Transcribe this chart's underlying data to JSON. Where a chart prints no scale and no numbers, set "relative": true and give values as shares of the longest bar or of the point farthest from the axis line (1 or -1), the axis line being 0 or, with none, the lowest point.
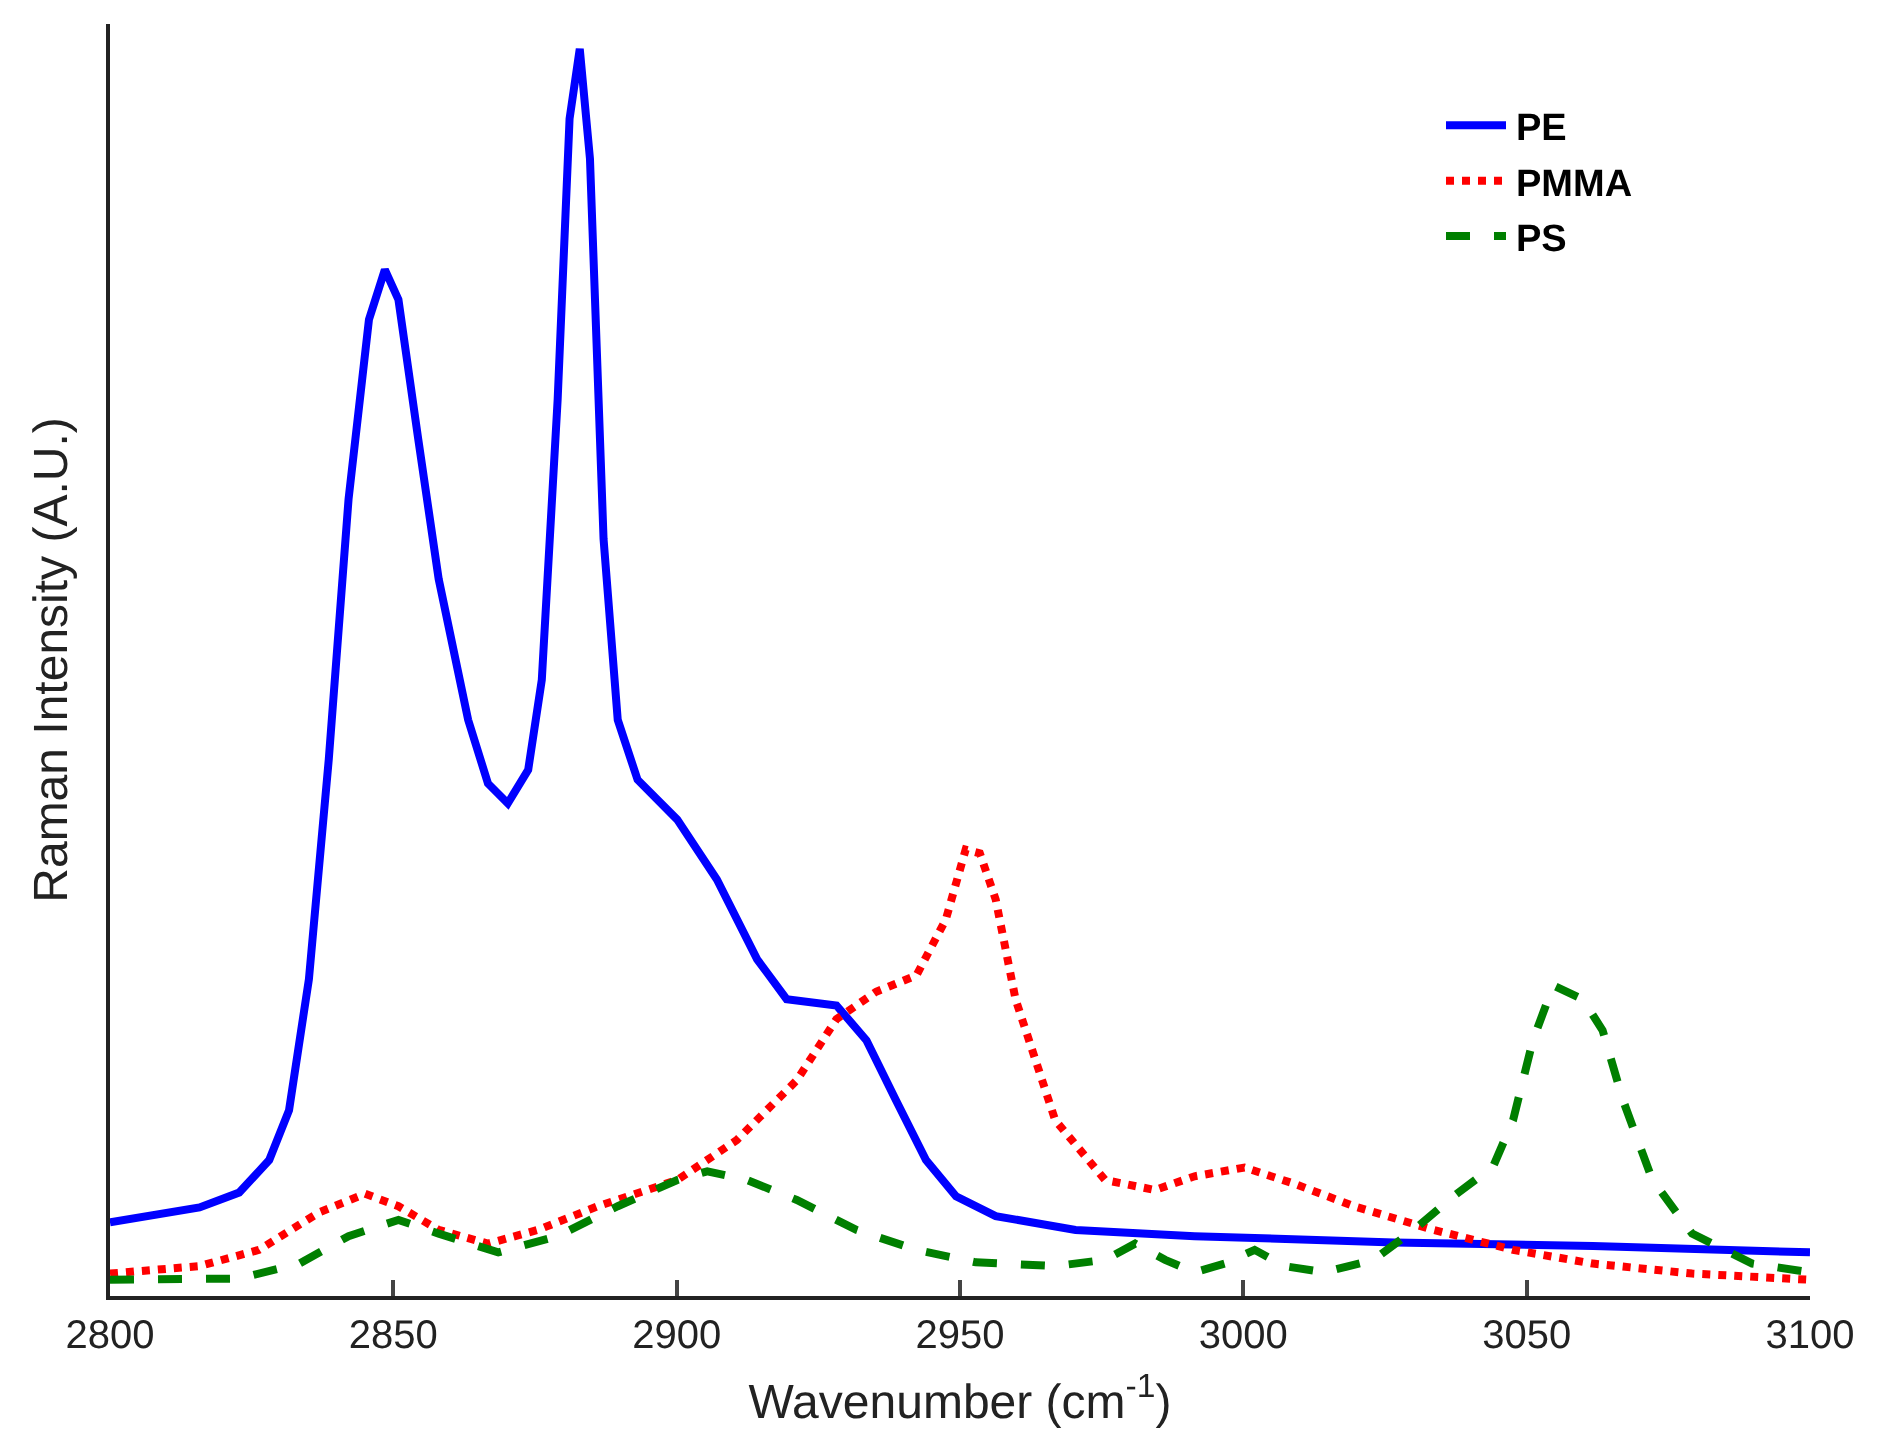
{
  "chart_data": {
    "type": "line",
    "relative": true,
    "xlabel": "Wavenumber (cm$^{-1}$)",
    "ylabel": "Raman Intensity (A.U.)",
    "xlim": [
      2800,
      3100
    ],
    "xticks": [
      2800,
      2850,
      2900,
      2950,
      3000,
      3050,
      3100
    ],
    "legend": "top right",
    "marker": "none",
    "series": [
      {
        "name": "PE",
        "color": "#0000ff",
        "line_style": "solid",
        "x": [
          2800,
          2815.8,
          2822.8,
          2828.1,
          2831.6,
          2835.1,
          2838.6,
          2842.1,
          2845.7,
          2848.5,
          2850.9,
          2854.4,
          2858.0,
          2863.2,
          2866.7,
          2870.2,
          2873.8,
          2876.2,
          2879.0,
          2881.1,
          2882.9,
          2884.7,
          2887.1,
          2889.6,
          2893.1,
          2900.1,
          2907.1,
          2914.2,
          2919.4,
          2928.2,
          2933.5,
          2938.7,
          2944.0,
          2949.3,
          2956.3,
          2970.4,
          2991.4,
          3026.6,
          3061.7,
          3100
        ],
        "values": [
          0.059,
          0.071,
          0.083,
          0.109,
          0.149,
          0.254,
          0.43,
          0.639,
          0.783,
          0.823,
          0.799,
          0.687,
          0.575,
          0.462,
          0.411,
          0.395,
          0.422,
          0.494,
          0.719,
          0.944,
          1,
          0.912,
          0.607,
          0.462,
          0.414,
          0.382,
          0.334,
          0.27,
          0.238,
          0.233,
          0.205,
          0.157,
          0.109,
          0.08,
          0.064,
          0.053,
          0.048,
          0.043,
          0.04,
          0.035
        ]
      },
      {
        "name": "PMMA",
        "color": "#ff0000",
        "line_style": "dotted",
        "x": [
          2800,
          2815.8,
          2826.3,
          2836.9,
          2845.0,
          2850.9,
          2858.0,
          2866.7,
          2875.5,
          2886.1,
          2900.1,
          2910.6,
          2921.2,
          2928.2,
          2935.2,
          2942.3,
          2947.5,
          2951.0,
          2953.5,
          2956.3,
          2959.8,
          2966.8,
          2975.6,
          2984.4,
          2991.4,
          3000.2,
          3009.0,
          3019.5,
          3033.6,
          3047.6,
          3061.7,
          3079.2,
          3100
        ],
        "values": [
          0.018,
          0.024,
          0.037,
          0.067,
          0.082,
          0.072,
          0.053,
          0.042,
          0.053,
          0.072,
          0.093,
          0.125,
          0.173,
          0.222,
          0.244,
          0.257,
          0.302,
          0.358,
          0.355,
          0.318,
          0.238,
          0.141,
          0.093,
          0.085,
          0.096,
          0.103,
          0.09,
          0.072,
          0.053,
          0.037,
          0.026,
          0.018,
          0.013
        ]
      },
      {
        "name": "PS",
        "color": "#007f00",
        "line_style": "dashed",
        "x": [
          2800,
          2822.8,
          2833.4,
          2842.1,
          2850.9,
          2858.0,
          2868.5,
          2879.0,
          2889.6,
          2900.1,
          2905.4,
          2912.4,
          2921.2,
          2931.7,
          2942.3,
          2952.8,
          2966.8,
          2975.6,
          2980.9,
          2986.2,
          2991.4,
          2996.7,
          3002.0,
          3007.2,
          3014.3,
          3023.0,
          3030.1,
          3037.1,
          3044.1,
          3047.6,
          3051.1,
          3054.7,
          3059.9,
          3063.4,
          3067.0,
          3072.2,
          3079.2,
          3089.8,
          3100
        ],
        "values": [
          0.013,
          0.014,
          0.026,
          0.048,
          0.061,
          0.05,
          0.035,
          0.048,
          0.072,
          0.093,
          0.1,
          0.093,
          0.077,
          0.053,
          0.037,
          0.027,
          0.024,
          0.029,
          0.042,
          0.029,
          0.019,
          0.026,
          0.037,
          0.024,
          0.019,
          0.029,
          0.053,
          0.08,
          0.104,
          0.141,
          0.205,
          0.249,
          0.238,
          0.213,
          0.157,
          0.093,
          0.05,
          0.026,
          0.019
        ]
      }
    ]
  }
}
